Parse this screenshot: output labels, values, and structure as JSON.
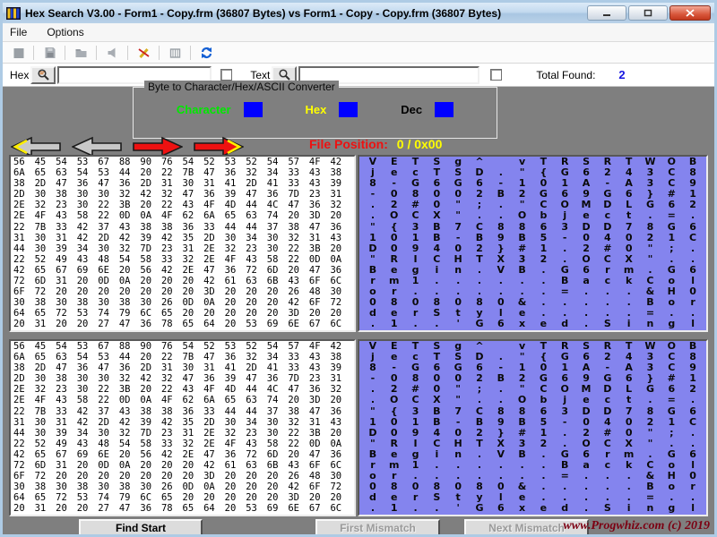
{
  "window": {
    "title": "Hex Search V3.00 - Form1 - Copy.frm (36807 Bytes) vs Form1 - Copy - Copy.frm (36807 Bytes)",
    "minimize_glyph": "—",
    "restore_glyph": "▢",
    "close_glyph": "✕"
  },
  "menu": {
    "items": [
      "File",
      "Options"
    ]
  },
  "toolbar": {
    "icons": [
      "stop-icon",
      "save-icon",
      "folder-icon",
      "speaker-icon",
      "wand-icon",
      "printer-icon",
      "refresh-icon"
    ],
    "refresh_color": "#1560d4"
  },
  "search": {
    "hex_label": "Hex",
    "hex_value": "",
    "text_label": "Text",
    "text_value": "",
    "total_found_label": "Total Found:",
    "total_found_value": "2"
  },
  "converter": {
    "title": "Byte to Character/Hex/ASCII Converter",
    "fields": [
      {
        "label": "Character",
        "label_color": "#00e800",
        "box_color": "#0000ff",
        "value": ""
      },
      {
        "label": "Hex",
        "label_color": "#ffff00",
        "box_color": "#0000ff",
        "value": ""
      },
      {
        "label": "Dec",
        "label_color": "#000000",
        "box_color": "#0000ff",
        "value": ""
      }
    ]
  },
  "navigation": {
    "arrows": [
      {
        "name": "fast-back-arrow-button",
        "dir": "left",
        "chevron": true,
        "color": "#c8c8c8"
      },
      {
        "name": "step-back-arrow-button",
        "dir": "left",
        "chevron": false,
        "color": "#c8c8c8"
      },
      {
        "name": "step-forward-arrow-button",
        "dir": "right",
        "chevron": false,
        "color": "#ee1111"
      },
      {
        "name": "fast-forward-arrow-button",
        "dir": "right",
        "chevron": true,
        "color": "#ee1111"
      }
    ],
    "file_position_label": "File Position:",
    "file_position_value": "0 / 0x00"
  },
  "panels": [
    {
      "hex_rows": [
        "56 45 54 53 67 88 90 76 54 52 53 52 54 57 4F 42",
        "6A 65 63 54 53 44 20 22 7B 47 36 32 34 33 43 38",
        "38 2D 47 36 47 36 2D 31 30 31 41 2D 41 33 43 39",
        "2D 30 38 30 30 32 42 32 47 36 39 47 36 7D 23 31",
        "2E 32 23 30 22 3B 20 22 43 4F 4D 44 4C 47 36 32",
        "2E 4F 43 58 22 0D 0A 4F 62 6A 65 63 74 20 3D 20",
        "22 7B 33 42 37 43 38 38 36 33 44 44 37 38 47 36",
        "31 30 31 42 2D 42 39 42 35 2D 30 34 30 32 31 43",
        "44 30 39 34 30 32 7D 23 31 2E 32 23 30 22 3B 20",
        "22 52 49 43 48 54 58 33 32 2E 4F 43 58 22 0D 0A",
        "42 65 67 69 6E 20 56 42 2E 47 36 72 6D 20 47 36",
        "72 6D 31 20 0D 0A 20 20 20 42 61 63 6B 43 6F 6C",
        "6F 72 20 20 20 20 20 20 20 3D 20 20 20 26 48 30",
        "30 38 30 38 30 38 30 26 0D 0A 20 20 20 42 6F 72",
        "64 65 72 53 74 79 6C 65 20 20 20 20 20 3D 20 20",
        "20 31 20 20 27 47 36 78 65 64 20 53 69 6E 67 6C"
      ],
      "char_rows": [
        "VETSg^ vTRSRTWOB",
        "jecTSD.\"{G6243C8",
        "8-G6G6-101A-A3C9",
        "-08002B2G69G6}#1",
        ".2#0\";.\"COMDLG62",
        ".OCX\"..Object.=.",
        "\"{3B7C8863DD78G6",
        "101B-B9B5-04021C",
        "D09402}#1.2#0\";.",
        "\"RICHTX32.OCX\"..",
        "Begin.VB.G6rm.G6",
        "rm1......BackCol",
        "or.......=...&H0",
        "0808080&.....Bor",
        "derStyle.....=..",
        ".1..'G6xed.Singl"
      ]
    },
    {
      "hex_rows": [
        "56 45 54 53 67 88 90 76 54 52 53 52 54 57 4F 42",
        "6A 65 63 54 53 44 20 22 7B 47 36 32 34 33 43 38",
        "38 2D 47 36 47 36 2D 31 30 31 41 2D 41 33 43 39",
        "2D 30 38 30 30 32 42 32 47 36 39 47 36 7D 23 31",
        "2E 32 23 30 22 3B 20 22 43 4F 4D 44 4C 47 36 32",
        "2E 4F 43 58 22 0D 0A 4F 62 6A 65 63 74 20 3D 20",
        "22 7B 33 42 37 43 38 38 36 33 44 44 37 38 47 36",
        "31 30 31 42 2D 42 39 42 35 2D 30 34 30 32 31 43",
        "44 30 39 34 30 32 7D 23 31 2E 32 23 30 22 3B 20",
        "22 52 49 43 48 54 58 33 32 2E 4F 43 58 22 0D 0A",
        "42 65 67 69 6E 20 56 42 2E 47 36 72 6D 20 47 36",
        "72 6D 31 20 0D 0A 20 20 20 42 61 63 6B 43 6F 6C",
        "6F 72 20 20 20 20 20 20 20 3D 20 20 20 26 48 30",
        "30 38 30 38 30 38 30 26 0D 0A 20 20 20 42 6F 72",
        "64 65 72 53 74 79 6C 65 20 20 20 20 20 3D 20 20",
        "20 31 20 20 27 47 36 78 65 64 20 53 69 6E 67 6C"
      ],
      "char_rows": [
        "VETSg^ vTRSRTWOB",
        "jecTSD.\"{G6243C8",
        "8-G6G6-101A-A3C9",
        "-08002B2G69G6}#1",
        ".2#0\";.\"COMDLG62",
        ".OCX\"..Object.=.",
        "\"{3B7C8863DD78G6",
        "101B-B9B5-04021C",
        "D09402}#1.2#0\";.",
        "\"RICHTX32.OCX\"..",
        "Begin.VB.G6rm.G6",
        "rm1......BackCol",
        "or.......=...&H0",
        "0808080&.....Bor",
        "derStyle.....=..",
        ".1..'G6xed.Singl"
      ]
    }
  ],
  "footer": {
    "find_start_label": "Find Start",
    "first_mismatch_label": "First Mismatch",
    "next_mismatch_label": "Next Mismatch",
    "credit": "www.Progwhiz.com (c) 2019"
  },
  "colors": {
    "body_gray": "#7f7f7f",
    "char_panel_bg": "#8484ee",
    "file_position_label": "#ee1111",
    "file_position_value": "#ffff00",
    "total_found_value": "#1515e0",
    "credit": "#7c0012"
  }
}
